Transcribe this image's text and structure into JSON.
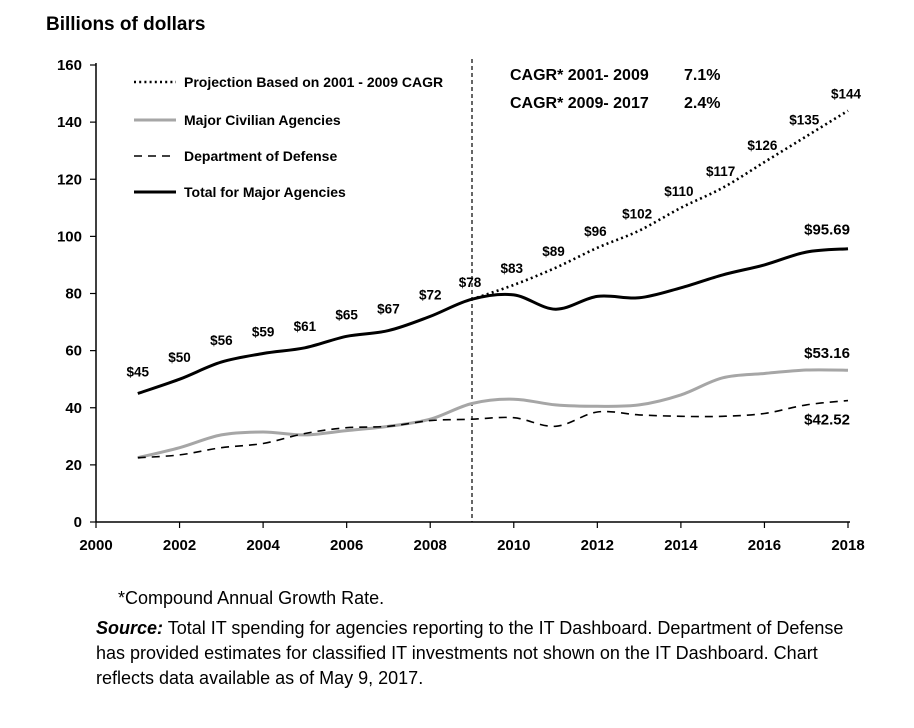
{
  "chart_data": {
    "type": "line",
    "ylabel": "Billions of dollars",
    "xlabel": "",
    "xlim": [
      2000,
      2018
    ],
    "ylim": [
      0,
      160
    ],
    "x_ticks": [
      2000,
      2002,
      2004,
      2006,
      2008,
      2010,
      2012,
      2014,
      2016,
      2018
    ],
    "y_ticks": [
      0,
      20,
      40,
      60,
      80,
      100,
      120,
      140,
      160
    ],
    "grid": false,
    "legend_position": "top-left",
    "reference_line": {
      "x": 2009,
      "style": "dashed"
    },
    "series": [
      {
        "name": "Projection Based on 2001 - 2009 CAGR",
        "style": "dotted",
        "color": "#000000",
        "x": [
          2009,
          2010,
          2011,
          2012,
          2013,
          2014,
          2015,
          2016,
          2017,
          2018
        ],
        "values": [
          78,
          83,
          89,
          96,
          102,
          110,
          117,
          126,
          135,
          144
        ]
      },
      {
        "name": "Major Civilian Agencies",
        "style": "solid",
        "color": "#a6a6a6",
        "x": [
          2001,
          2002,
          2003,
          2004,
          2005,
          2006,
          2007,
          2008,
          2009,
          2010,
          2011,
          2012,
          2013,
          2014,
          2015,
          2016,
          2017,
          2018
        ],
        "values": [
          22.5,
          26,
          30.5,
          31.5,
          30.5,
          32,
          33.5,
          36,
          41.5,
          43,
          41,
          40.5,
          41,
          44.5,
          50.5,
          52,
          53.2,
          53.16
        ]
      },
      {
        "name": "Department of Defense",
        "style": "dashed",
        "color": "#000000",
        "x": [
          2001,
          2002,
          2003,
          2004,
          2005,
          2006,
          2007,
          2008,
          2009,
          2010,
          2011,
          2012,
          2013,
          2014,
          2015,
          2016,
          2017,
          2018
        ],
        "values": [
          22.5,
          23.5,
          26,
          27.5,
          31,
          33,
          33.5,
          35.5,
          36,
          36.5,
          33.5,
          38.5,
          37.5,
          37,
          37,
          38,
          41,
          42.52
        ]
      },
      {
        "name": "Total for Major Agencies",
        "style": "solid",
        "color": "#000000",
        "x": [
          2001,
          2002,
          2003,
          2004,
          2005,
          2006,
          2007,
          2008,
          2009,
          2010,
          2011,
          2012,
          2013,
          2014,
          2015,
          2016,
          2017,
          2018
        ],
        "values": [
          45,
          50,
          56,
          59,
          61,
          65,
          67,
          72,
          78,
          79.5,
          74.5,
          79,
          78.5,
          82,
          86.5,
          90,
          94.5,
          95.69
        ]
      }
    ],
    "data_labels": [
      {
        "x": 2001,
        "y": 45,
        "text": "$45"
      },
      {
        "x": 2002,
        "y": 50,
        "text": "$50"
      },
      {
        "x": 2003,
        "y": 56,
        "text": "$56"
      },
      {
        "x": 2004,
        "y": 59,
        "text": "$59"
      },
      {
        "x": 2005,
        "y": 61,
        "text": "$61"
      },
      {
        "x": 2006,
        "y": 65,
        "text": "$65"
      },
      {
        "x": 2007,
        "y": 67,
        "text": "$67"
      },
      {
        "x": 2008,
        "y": 72,
        "text": "$72"
      },
      {
        "x": 2009,
        "y": 78,
        "text": "$78"
      },
      {
        "x": 2010,
        "y": 83,
        "text": "$83"
      },
      {
        "x": 2011,
        "y": 89,
        "text": "$89"
      },
      {
        "x": 2012,
        "y": 96,
        "text": "$96"
      },
      {
        "x": 2013,
        "y": 102,
        "text": "$102"
      },
      {
        "x": 2014,
        "y": 110,
        "text": "$110"
      },
      {
        "x": 2015,
        "y": 117,
        "text": "$117"
      },
      {
        "x": 2016,
        "y": 126,
        "text": "$126"
      },
      {
        "x": 2017,
        "y": 135,
        "text": "$135"
      },
      {
        "x": 2018,
        "y": 144,
        "text": "$144"
      }
    ],
    "end_labels": [
      {
        "x": 2018,
        "y": 95.69,
        "text": "$95.69"
      },
      {
        "x": 2018,
        "y": 53.16,
        "text": "$53.16"
      },
      {
        "x": 2018,
        "y": 42.52,
        "text": "$42.52"
      }
    ],
    "annotations": [
      {
        "label": "CAGR* 2001- 2009",
        "value": "7.1%"
      },
      {
        "label": "CAGR* 2009- 2017",
        "value": "2.4%"
      }
    ]
  },
  "footnote": "*Compound Annual Growth Rate.",
  "source": {
    "label": "Source:",
    "text": " Total IT spending for agencies reporting to the IT Dashboard. Department of Defense has provided estimates for classified IT investments not shown on the IT Dashboard. Chart reflects data available as of May 9, 2017."
  }
}
